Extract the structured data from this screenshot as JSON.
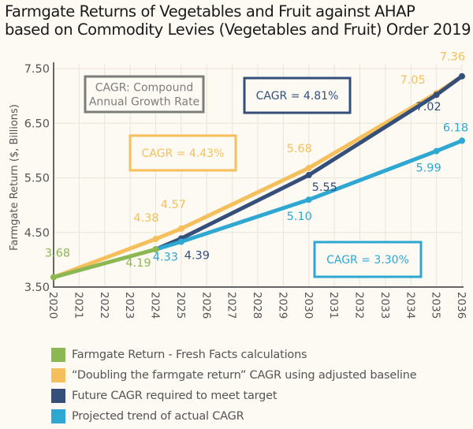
{
  "chart_data": {
    "type": "line",
    "title": "Farmgate Returns of Vegetables and Fruit against AHAP based on Commodity Levies (Vegetables and Fruit) Order 2019",
    "title_lines": [
      "Farmgate Returns of Vegetables and Fruit against AHAP",
      "based on Commodity Levies (Vegetables and Fruit) Order 2019"
    ],
    "xlabel": "",
    "ylabel": "Farmgate Return ($, Billions)",
    "xlim": [
      2020,
      2036
    ],
    "ylim": [
      3.5,
      7.5
    ],
    "x_ticks": [
      "2020",
      "2021",
      "2022",
      "2023",
      "2024",
      "2025",
      "2026",
      "2027",
      "2028",
      "2029",
      "2030",
      "2031",
      "2032",
      "2033",
      "2034",
      "2035",
      "2036"
    ],
    "y_ticks": [
      "3.50",
      "4.50",
      "5.50",
      "6.50",
      "7.50"
    ],
    "grid": true,
    "legend_position": "bottom",
    "series": [
      {
        "name": "Farmgate Return - Fresh Facts calculations",
        "color": "#8cb854",
        "points": [
          {
            "x": 2020,
            "y": 3.68
          },
          {
            "x": 2024,
            "y": 4.19
          }
        ],
        "labels": [
          {
            "x": 2020,
            "y": 3.68,
            "text": "3.68"
          },
          {
            "x": 2024,
            "y": 4.19,
            "text": "4.19"
          }
        ]
      },
      {
        "name": "“Doubling the farmgate return” CAGR using adjusted baseline",
        "color": "#f5c05c",
        "points": [
          {
            "x": 2020,
            "y": 3.68
          },
          {
            "x": 2024,
            "y": 4.38
          },
          {
            "x": 2025,
            "y": 4.57
          },
          {
            "x": 2030,
            "y": 5.68
          },
          {
            "x": 2035,
            "y": 7.05
          },
          {
            "x": 2036,
            "y": 7.36
          }
        ],
        "labels": [
          {
            "x": 2024,
            "y": 4.38,
            "text": "4.38"
          },
          {
            "x": 2025,
            "y": 4.57,
            "text": "4.57"
          },
          {
            "x": 2030,
            "y": 5.68,
            "text": "5.68"
          },
          {
            "x": 2035,
            "y": 7.05,
            "text": "7.05"
          },
          {
            "x": 2036,
            "y": 7.36,
            "text": "7.36"
          }
        ]
      },
      {
        "name": "Future CAGR required to meet target",
        "color": "#34507a",
        "points": [
          {
            "x": 2024,
            "y": 4.19
          },
          {
            "x": 2025,
            "y": 4.39
          },
          {
            "x": 2030,
            "y": 5.55
          },
          {
            "x": 2035,
            "y": 7.02
          },
          {
            "x": 2036,
            "y": 7.36
          }
        ],
        "labels": [
          {
            "x": 2025,
            "y": 4.39,
            "text": "4.39"
          },
          {
            "x": 2030,
            "y": 5.55,
            "text": "5.55"
          },
          {
            "x": 2035,
            "y": 7.02,
            "text": "7.02"
          }
        ]
      },
      {
        "name": "Projected trend of actual CAGR",
        "color": "#2ea8d2",
        "points": [
          {
            "x": 2024,
            "y": 4.19
          },
          {
            "x": 2025,
            "y": 4.33
          },
          {
            "x": 2030,
            "y": 5.1
          },
          {
            "x": 2035,
            "y": 5.99
          },
          {
            "x": 2036,
            "y": 6.18
          }
        ],
        "labels": [
          {
            "x": 2025,
            "y": 4.33,
            "text": "4.33"
          },
          {
            "x": 2030,
            "y": 5.1,
            "text": "5.10"
          },
          {
            "x": 2035,
            "y": 5.99,
            "text": "5.99"
          },
          {
            "x": 2036,
            "y": 6.18,
            "text": "6.18"
          }
        ]
      }
    ],
    "annotations": [
      {
        "id": "definition",
        "lines": [
          "CAGR: Compound",
          "Annual Growth Rate"
        ],
        "color": "#7d7d7d"
      },
      {
        "id": "future",
        "lines": [
          "CAGR = 4.81%"
        ],
        "color": "#34507a"
      },
      {
        "id": "doubling",
        "lines": [
          "CAGR = 4.43%"
        ],
        "color": "#f5c05c"
      },
      {
        "id": "projected",
        "lines": [
          "CAGR = 3.30%"
        ],
        "color": "#2ea8d2"
      }
    ]
  },
  "colors": {
    "background": "#fdf9f3",
    "grid": "#ece4d8",
    "axis": "#666666",
    "tick_text": "#555555"
  }
}
